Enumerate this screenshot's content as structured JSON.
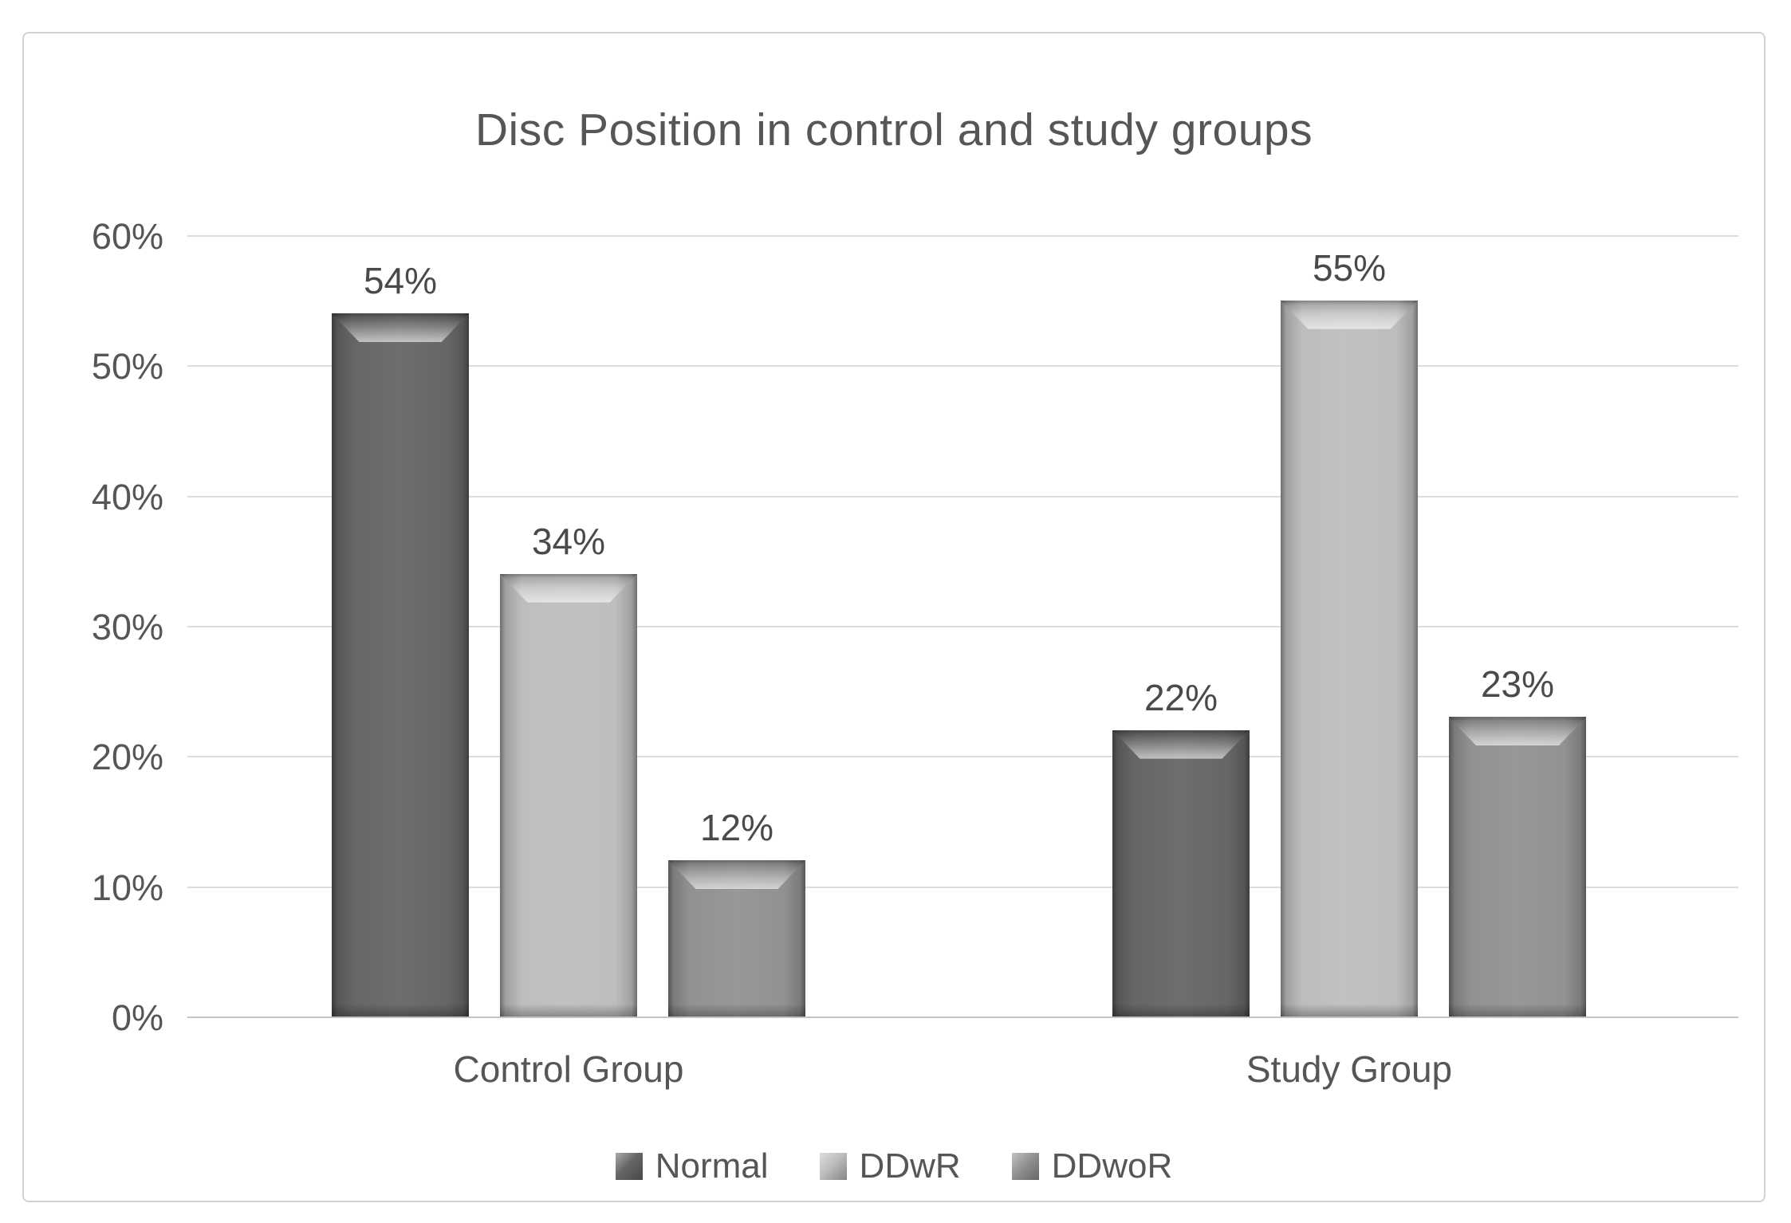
{
  "chart_data": {
    "type": "bar",
    "title": "Disc Position in control and study groups",
    "categories": [
      "Control Group",
      "Study Group"
    ],
    "series": [
      {
        "name": "Normal",
        "values": [
          54,
          22
        ],
        "labels": [
          "54%",
          "22%"
        ],
        "color": "#666666"
      },
      {
        "name": "DDwR",
        "values": [
          34,
          55
        ],
        "labels": [
          "34%",
          "55%"
        ],
        "color": "#bebebe"
      },
      {
        "name": "DDwoR",
        "values": [
          12,
          23
        ],
        "labels": [
          "12%",
          "23%"
        ],
        "color": "#929292"
      }
    ],
    "y_ticks": [
      {
        "v": 0,
        "label": "0%"
      },
      {
        "v": 10,
        "label": "10%"
      },
      {
        "v": 20,
        "label": "20%"
      },
      {
        "v": 30,
        "label": "30%"
      },
      {
        "v": 40,
        "label": "40%"
      },
      {
        "v": 50,
        "label": "50%"
      },
      {
        "v": 60,
        "label": "60%"
      }
    ],
    "ylim": [
      0,
      60
    ],
    "grid": true,
    "legend_position": "bottom",
    "colors": {
      "grid": "#dcdcdc",
      "axis_line": "#c4c4c4",
      "text": "#565656",
      "frame_border": "#d2d2d2"
    }
  }
}
